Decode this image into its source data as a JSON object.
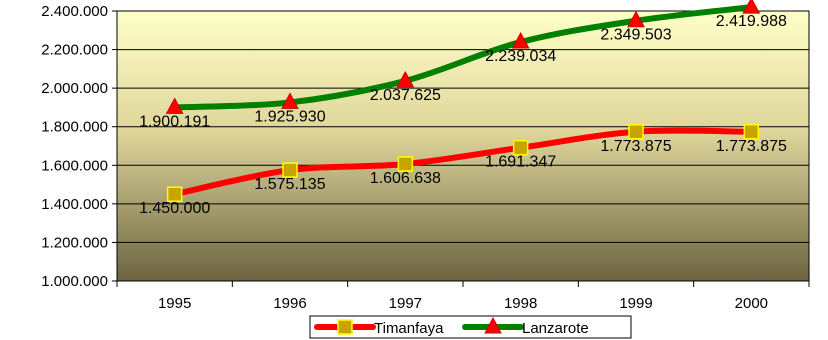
{
  "chart_data": {
    "type": "line",
    "title": "",
    "xlabel": "",
    "ylabel": "",
    "categories": [
      "1995",
      "1996",
      "1997",
      "1998",
      "1999",
      "2000"
    ],
    "ylim": [
      1000000,
      2400000
    ],
    "yticks": [
      1000000,
      1200000,
      1400000,
      1600000,
      1800000,
      2000000,
      2200000,
      2400000
    ],
    "ytick_labels": [
      "1.000.000",
      "1.200.000",
      "1.400.000",
      "1.600.000",
      "1.800.000",
      "2.000.000",
      "2.200.000",
      "2.400.000"
    ],
    "grid": true,
    "legend_position": "bottom",
    "series": [
      {
        "name": "Timanfaya",
        "color": "#ff0000",
        "marker": "square",
        "marker_color": "#c8a400",
        "values": [
          1450000,
          1575135,
          1606638,
          1691347,
          1773875,
          1773875
        ],
        "labels": [
          "1.450.000",
          "1.575.135",
          "1.606.638",
          "1.691.347",
          "1.773.875",
          "1.773.875"
        ]
      },
      {
        "name": "Lanzarote",
        "color": "#008000",
        "marker": "triangle",
        "marker_color": "#ff0000",
        "values": [
          1900191,
          1925930,
          2037625,
          2239034,
          2349503,
          2419988
        ],
        "labels": [
          "1.900.191",
          "1.925.930",
          "2.037.625",
          "2.239.034",
          "2.349.503",
          "2.419.988"
        ]
      }
    ],
    "plot_background": [
      "#ffffc8",
      "#6b6440"
    ]
  }
}
